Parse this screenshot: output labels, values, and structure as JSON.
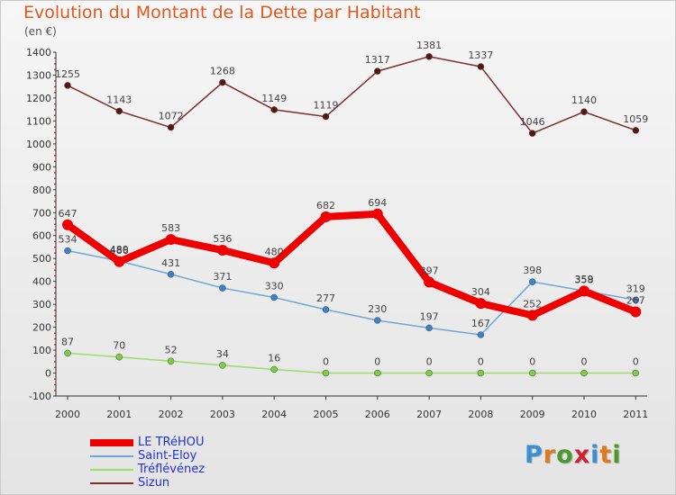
{
  "title": "Evolution du Montant de la Dette par Habitant",
  "subtitle": "(en €)",
  "logo": {
    "text": "Proxiti",
    "letter_colors": [
      "#3a8fd0",
      "#e07820",
      "#4a9a2a",
      "#d02030",
      "#3a8fd0",
      "#e07820",
      "#4a9a2a"
    ]
  },
  "chart_data": {
    "type": "line",
    "title": "Evolution du Montant de la Dette par Habitant",
    "ylabel": "(en €)",
    "xlabel": "",
    "x": [
      "2000",
      "2001",
      "2002",
      "2003",
      "2004",
      "2005",
      "2006",
      "2007",
      "2008",
      "2009",
      "2010",
      "2011"
    ],
    "ylim": [
      -100,
      1400
    ],
    "yticks": [
      -100,
      0,
      100,
      200,
      300,
      400,
      500,
      600,
      700,
      800,
      900,
      1000,
      1100,
      1200,
      1300,
      1400
    ],
    "grid": false,
    "legend": "bottom-left",
    "series": [
      {
        "name": "LE TRéHOU",
        "values": [
          647,
          486,
          583,
          536,
          480,
          682,
          694,
          397,
          304,
          252,
          358,
          267
        ],
        "labels": [
          "647",
          "486",
          "583",
          "536",
          "480",
          "682",
          "694",
          "397",
          "304",
          "252",
          "358",
          "267"
        ],
        "color": "#ee0000",
        "marker": "#ee0000"
      },
      {
        "name": "Saint-Eloy",
        "values": [
          534,
          489,
          431,
          371,
          330,
          277,
          230,
          197,
          167,
          398,
          359,
          319
        ],
        "labels": [
          "534",
          "489",
          "431",
          "371",
          "330",
          "277",
          "230",
          "197",
          "167",
          "398",
          "359",
          "319"
        ],
        "color": "#6fa7d6",
        "marker": "#3b82c8"
      },
      {
        "name": "Tréflévénez",
        "values": [
          87,
          70,
          52,
          34,
          16,
          0,
          0,
          0,
          0,
          0,
          0,
          0
        ],
        "labels": [
          "87",
          "70",
          "52",
          "34",
          "16",
          "0",
          "0",
          "0",
          "0",
          "0",
          "0",
          "0"
        ],
        "color": "#99dd66",
        "marker": "#7dcc44"
      },
      {
        "name": "Sizun",
        "values": [
          1255,
          1143,
          1072,
          1268,
          1149,
          1119,
          1317,
          1381,
          1337,
          1046,
          1140,
          1059
        ],
        "labels": [
          "1255",
          "1143",
          "1072",
          "1268",
          "1149",
          "1119",
          "1317",
          "1381",
          "1337",
          "1046",
          "1140",
          "1059"
        ],
        "color": "#7a2e2e",
        "marker": "#5a1414"
      }
    ]
  }
}
